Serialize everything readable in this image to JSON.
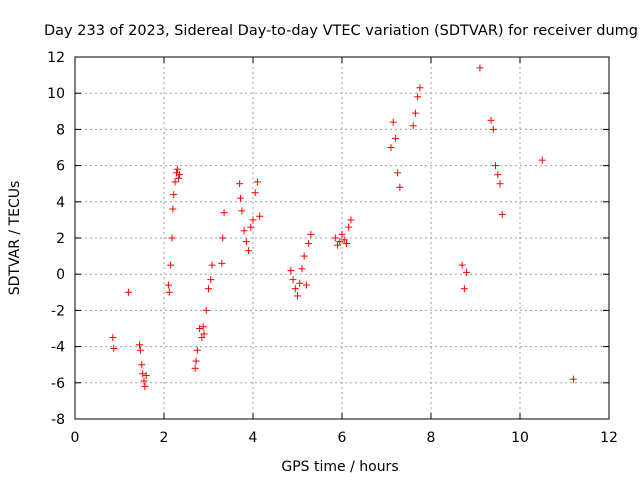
{
  "chart_data": {
    "type": "scatter",
    "title": "Day 233 of 2023, Sidereal Day-to-day VTEC variation (SDTVAR) for receiver dumg",
    "xlabel": "GPS time / hours",
    "ylabel": "SDTVAR / TECUs",
    "xlim": [
      0,
      12
    ],
    "ylim": [
      -8,
      12
    ],
    "xticks": [
      0,
      2,
      4,
      6,
      8,
      10,
      12
    ],
    "yticks": [
      -8,
      -6,
      -4,
      -2,
      0,
      2,
      4,
      6,
      8,
      10,
      12
    ],
    "xtick_labels": [
      "0",
      "2",
      "4",
      "6",
      "8",
      "10",
      "12"
    ],
    "ytick_labels": [
      "-8",
      "-6",
      "-4",
      "-2",
      "0",
      "2",
      "4",
      "6",
      "8",
      "10",
      "12"
    ],
    "grid": true,
    "marker": "+",
    "marker_color": "#ff0000",
    "series": [
      {
        "name": "SDTVAR",
        "x": [
          0.85,
          0.87,
          1.2,
          1.45,
          1.47,
          1.5,
          1.52,
          1.55,
          1.57,
          1.6,
          2.1,
          2.12,
          2.15,
          2.18,
          2.2,
          2.22,
          2.25,
          2.28,
          2.3,
          2.33,
          2.35,
          2.7,
          2.72,
          2.75,
          2.8,
          2.85,
          2.88,
          2.9,
          2.95,
          3.0,
          3.05,
          3.08,
          3.3,
          3.32,
          3.35,
          3.7,
          3.72,
          3.75,
          3.8,
          3.85,
          3.9,
          3.95,
          4.0,
          4.05,
          4.1,
          4.15,
          4.85,
          4.9,
          4.95,
          5.0,
          5.05,
          5.1,
          5.15,
          5.2,
          5.25,
          5.3,
          5.85,
          5.9,
          5.95,
          6.0,
          6.05,
          6.1,
          6.15,
          6.2,
          7.1,
          7.15,
          7.2,
          7.25,
          7.3,
          7.6,
          7.65,
          7.7,
          7.75,
          8.7,
          8.75,
          8.8,
          9.1,
          9.35,
          9.4,
          9.45,
          9.5,
          9.55,
          9.6,
          10.5,
          11.2
        ],
        "y": [
          -3.5,
          -4.1,
          -1.0,
          -3.9,
          -4.2,
          -5.0,
          -5.5,
          -5.9,
          -6.2,
          -5.6,
          -0.6,
          -1.0,
          0.5,
          2.0,
          3.6,
          4.4,
          5.1,
          5.6,
          5.8,
          5.3,
          5.5,
          -5.2,
          -4.8,
          -4.2,
          -3.0,
          -3.5,
          -2.9,
          -3.3,
          -2.0,
          -0.8,
          -0.3,
          0.5,
          0.6,
          2.0,
          3.4,
          5.0,
          4.2,
          3.5,
          2.4,
          1.8,
          1.3,
          2.6,
          3.0,
          4.5,
          5.1,
          3.2,
          0.2,
          -0.3,
          -0.8,
          -1.2,
          -0.5,
          0.3,
          1.0,
          -0.6,
          1.7,
          2.2,
          2.0,
          1.6,
          1.8,
          2.2,
          1.9,
          1.7,
          2.6,
          3.0,
          7.0,
          8.4,
          7.5,
          5.6,
          4.8,
          8.2,
          8.9,
          9.8,
          10.3,
          0.5,
          -0.8,
          0.1,
          11.4,
          8.5,
          8.0,
          6.0,
          5.5,
          5.0,
          3.3,
          6.3,
          -5.8
        ]
      }
    ]
  }
}
